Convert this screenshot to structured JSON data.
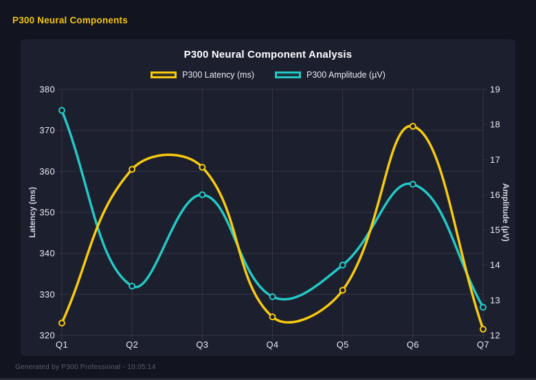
{
  "page": {
    "header": "P300 Neural Components",
    "footer": "Generated by P300 Professional - 10:05:14"
  },
  "colors": {
    "bg": "#12141f",
    "panel": "#1c1f2e",
    "grid": "rgba(255,255,255,0.10)",
    "tick_text": "#e8eaf0",
    "title_text": "#ffffff",
    "axis_title_text": "#d2d5de",
    "legend_text": "#e8eaf0",
    "footer_text": "#596070",
    "header_text": "#f2c40f",
    "strip": "#262a35"
  },
  "chart_data": {
    "type": "line",
    "title": "P300 Neural Component Analysis",
    "categories": [
      "Q1",
      "Q2",
      "Q3",
      "Q4",
      "Q5",
      "Q6",
      "Q7"
    ],
    "series": [
      {
        "name": "P300 Latency (ms)",
        "axis": "left",
        "color": "#f8ca0e",
        "values": [
          323,
          360.5,
          361,
          324.5,
          331,
          371,
          321.5
        ]
      },
      {
        "name": "P300 Amplitude (µV)",
        "axis": "right",
        "color": "#23c8c4",
        "values": [
          18.4,
          13.4,
          16.0,
          13.1,
          14.0,
          16.3,
          12.8
        ]
      }
    ],
    "left_axis": {
      "label": "Latency (ms)",
      "min": 320,
      "max": 380,
      "step": 10
    },
    "right_axis": {
      "label": "Amplitude (µV)",
      "min": 12,
      "max": 19,
      "step": 1
    },
    "grid": true,
    "line_tension": 0.4,
    "legend_position": "top"
  }
}
